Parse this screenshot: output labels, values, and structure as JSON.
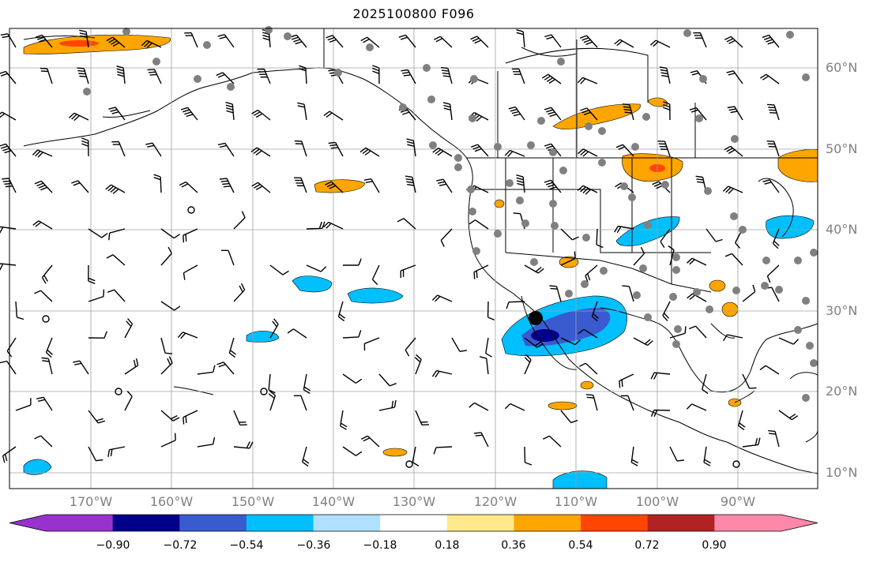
{
  "title": "2025100800 F096",
  "latitude_labels": [
    "60°N",
    "50°N",
    "40°N",
    "30°N",
    "20°N",
    "10°N"
  ],
  "longitude_labels": [
    "170°W",
    "160°W",
    "150°W",
    "140°W",
    "130°W",
    "120°W",
    "110°W",
    "100°W",
    "90°W"
  ],
  "colorbar": {
    "tick_labels": [
      "−0.90",
      "−0.72",
      "−0.54",
      "−0.36",
      "−0.18",
      "0.18",
      "0.36",
      "0.54",
      "0.72",
      "0.90"
    ],
    "colors": [
      "#9932cc",
      "#00008b",
      "#3a5bd0",
      "#00bfff",
      "#b0e0ff",
      "#ffffff",
      "#ffe98a",
      "#ffa500",
      "#ff4500",
      "#b22222",
      "#ff88aa"
    ]
  },
  "colors": {
    "land_outline": "#000000",
    "grid": "#a0a0a0",
    "station_dot": "#808080",
    "negative_shading": "#00bfff",
    "positive_shading": "#ffa500"
  }
}
